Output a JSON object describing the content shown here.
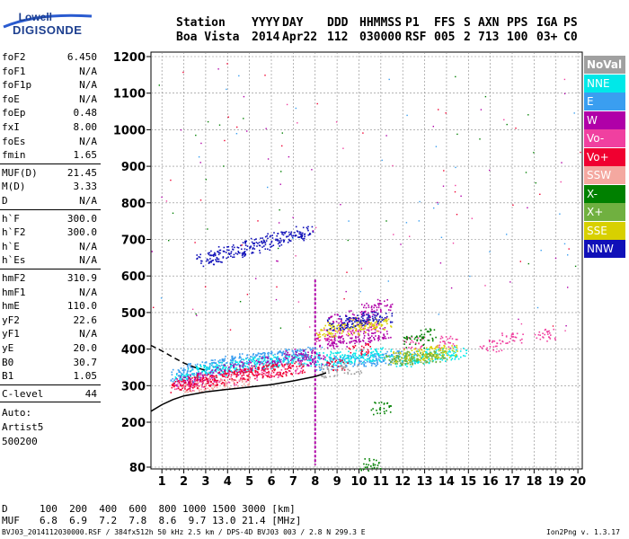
{
  "logo": {
    "line1": "Lowell",
    "line2": "DIGISONDE"
  },
  "header": {
    "labels": [
      "Station",
      "YYYY",
      "DAY",
      "DDD",
      "HHMMSS",
      "P1",
      "FFS",
      "S",
      "AXN",
      "PPS",
      "IGA",
      "PS"
    ],
    "values": [
      "Boa Vista",
      "2014",
      "Apr22",
      "112",
      "030000",
      "RSF",
      "005",
      "2",
      "713",
      "100",
      "03+",
      "C0"
    ]
  },
  "params": {
    "group1": [
      {
        "name": "foF2",
        "value": "6.450"
      },
      {
        "name": "foF1",
        "value": "N/A"
      },
      {
        "name": "foF1p",
        "value": "N/A"
      },
      {
        "name": "foE",
        "value": "N/A"
      },
      {
        "name": "foEp",
        "value": "0.48"
      },
      {
        "name": "fxI",
        "value": "8.00"
      },
      {
        "name": "foEs",
        "value": "N/A"
      },
      {
        "name": "fmin",
        "value": "1.65"
      }
    ],
    "group2": [
      {
        "name": "MUF(D)",
        "value": "21.45"
      },
      {
        "name": "M(D)",
        "value": "3.33"
      },
      {
        "name": "D",
        "value": "N/A"
      }
    ],
    "group3": [
      {
        "name": "h`F",
        "value": "300.0"
      },
      {
        "name": "h`F2",
        "value": "300.0"
      },
      {
        "name": "h`E",
        "value": "N/A"
      },
      {
        "name": "h`Es",
        "value": "N/A"
      }
    ],
    "group4": [
      {
        "name": "hmF2",
        "value": "310.9"
      },
      {
        "name": "hmF1",
        "value": "N/A"
      },
      {
        "name": "hmE",
        "value": "110.0"
      },
      {
        "name": "yF2",
        "value": "22.6"
      },
      {
        "name": "yF1",
        "value": "N/A"
      },
      {
        "name": "yE",
        "value": "20.0"
      },
      {
        "name": "B0",
        "value": "30.7"
      },
      {
        "name": "B1",
        "value": "1.05"
      }
    ],
    "group5": [
      {
        "name": "C-level",
        "value": "44"
      }
    ],
    "auto": [
      "Auto:",
      "Artist5",
      "500200"
    ]
  },
  "legend": [
    {
      "label": "NoVal",
      "color": "#a0a0a0"
    },
    {
      "label": "NNE",
      "color": "#00e8e8"
    },
    {
      "label": "E",
      "color": "#3a9ef0"
    },
    {
      "label": "W",
      "color": "#b000a8"
    },
    {
      "label": "Vo-",
      "color": "#f040a0"
    },
    {
      "label": "Vo+",
      "color": "#f00030"
    },
    {
      "label": "SSW",
      "color": "#f4a8a0"
    },
    {
      "label": "X-",
      "color": "#008000"
    },
    {
      "label": "X+",
      "color": "#70b040"
    },
    {
      "label": "SSE",
      "color": "#d8d000"
    },
    {
      "label": "NNW",
      "color": "#1010b8"
    }
  ],
  "chart_data": {
    "type": "scatter",
    "xlim": [
      0.5,
      20.2
    ],
    "ylim": [
      80,
      1210
    ],
    "xticks": [
      1,
      2,
      3,
      4,
      5,
      6,
      7,
      8,
      9,
      10,
      11,
      12,
      13,
      14,
      15,
      16,
      17,
      18,
      19,
      20
    ],
    "yticks": [
      80,
      200,
      300,
      400,
      500,
      600,
      700,
      800,
      900,
      1000,
      1100,
      1200
    ],
    "grid": true,
    "marker_line_x": 8.0,
    "series": [
      {
        "name": "E",
        "color": "#3a9ef0",
        "points": [
          [
            1.8,
            330
          ],
          [
            2.2,
            340
          ],
          [
            2.6,
            345
          ],
          [
            3.0,
            350
          ],
          [
            3.4,
            355
          ],
          [
            3.8,
            360
          ],
          [
            4.2,
            365
          ],
          [
            4.6,
            370
          ],
          [
            5.0,
            372
          ],
          [
            5.4,
            375
          ],
          [
            5.8,
            378
          ],
          [
            6.2,
            380
          ],
          [
            6.6,
            382
          ],
          [
            7.0,
            385
          ],
          [
            7.4,
            388
          ],
          [
            7.8,
            390
          ],
          [
            8.5,
            360
          ],
          [
            9.0,
            365
          ],
          [
            9.5,
            368
          ],
          [
            10.0,
            370
          ],
          [
            10.5,
            372
          ],
          [
            11.0,
            375
          ],
          [
            11.5,
            378
          ],
          [
            12.2,
            380
          ]
        ]
      },
      {
        "name": "NNE",
        "color": "#00e8e8",
        "points": [
          [
            2.0,
            320
          ],
          [
            2.5,
            335
          ],
          [
            3.0,
            340
          ],
          [
            3.5,
            345
          ],
          [
            4.0,
            350
          ],
          [
            4.5,
            355
          ],
          [
            5.0,
            360
          ],
          [
            5.5,
            362
          ],
          [
            6.0,
            365
          ],
          [
            6.5,
            368
          ],
          [
            7.0,
            370
          ],
          [
            7.5,
            372
          ],
          [
            8.5,
            375
          ],
          [
            9.0,
            378
          ],
          [
            9.5,
            380
          ],
          [
            10.0,
            382
          ],
          [
            10.5,
            385
          ],
          [
            11.0,
            388
          ],
          [
            12.0,
            370
          ],
          [
            12.5,
            375
          ],
          [
            13.0,
            380
          ],
          [
            13.5,
            385
          ],
          [
            14.0,
            388
          ],
          [
            14.5,
            392
          ]
        ]
      },
      {
        "name": "W",
        "color": "#b000a8",
        "points": [
          [
            2.0,
            310
          ],
          [
            2.5,
            320
          ],
          [
            3.0,
            330
          ],
          [
            4.0,
            345
          ],
          [
            5.0,
            355
          ],
          [
            6.0,
            365
          ],
          [
            7.0,
            380
          ],
          [
            7.5,
            385
          ],
          [
            8.1,
            370
          ],
          [
            8.5,
            420
          ],
          [
            9.0,
            425
          ],
          [
            9.5,
            430
          ],
          [
            10.0,
            435
          ],
          [
            10.5,
            440
          ],
          [
            11.0,
            445
          ],
          [
            9.0,
            480
          ],
          [
            10.0,
            490
          ],
          [
            10.5,
            510
          ],
          [
            11.0,
            520
          ]
        ]
      },
      {
        "name": "Vo-",
        "color": "#f040a0",
        "points": [
          [
            2.0,
            305
          ],
          [
            3.0,
            315
          ],
          [
            4.0,
            320
          ],
          [
            5.0,
            330
          ],
          [
            6.0,
            340
          ],
          [
            7.0,
            350
          ],
          [
            8.5,
            440
          ],
          [
            9.5,
            455
          ],
          [
            10.5,
            460
          ],
          [
            12.5,
            420
          ],
          [
            14.0,
            420
          ],
          [
            16.0,
            410
          ],
          [
            17.0,
            430
          ],
          [
            18.5,
            440
          ]
        ]
      },
      {
        "name": "Vo+",
        "color": "#f00030",
        "points": [
          [
            1.8,
            300
          ],
          [
            2.2,
            305
          ],
          [
            2.6,
            310
          ],
          [
            3.0,
            315
          ],
          [
            3.5,
            320
          ],
          [
            4.0,
            325
          ],
          [
            4.5,
            330
          ],
          [
            5.0,
            335
          ],
          [
            5.5,
            338
          ],
          [
            6.0,
            342
          ],
          [
            6.5,
            345
          ],
          [
            7.0,
            350
          ],
          [
            9.0,
            360
          ],
          [
            10.0,
            400
          ]
        ]
      },
      {
        "name": "SSE",
        "color": "#d8d000",
        "points": [
          [
            8.5,
            450
          ],
          [
            9.0,
            460
          ],
          [
            9.5,
            455
          ],
          [
            10.0,
            470
          ],
          [
            10.5,
            465
          ],
          [
            11.0,
            470
          ],
          [
            12.0,
            380
          ],
          [
            12.5,
            385
          ],
          [
            13.0,
            390
          ],
          [
            13.5,
            392
          ],
          [
            14.0,
            395
          ]
        ]
      },
      {
        "name": "X+",
        "color": "#70b040",
        "points": [
          [
            11.5,
            370
          ],
          [
            12.0,
            375
          ],
          [
            12.5,
            378
          ],
          [
            13.0,
            380
          ],
          [
            13.5,
            382
          ]
        ]
      },
      {
        "name": "X-",
        "color": "#008000",
        "points": [
          [
            12.5,
            420
          ],
          [
            13.0,
            440
          ],
          [
            11.0,
            240
          ],
          [
            10.5,
            88
          ]
        ]
      },
      {
        "name": "NNW",
        "color": "#1010b8",
        "points": [
          [
            3.0,
            645
          ],
          [
            3.5,
            655
          ],
          [
            4.0,
            665
          ],
          [
            4.5,
            670
          ],
          [
            5.0,
            680
          ],
          [
            5.5,
            690
          ],
          [
            6.0,
            700
          ],
          [
            6.5,
            710
          ],
          [
            7.0,
            715
          ],
          [
            7.4,
            720
          ],
          [
            9.0,
            470
          ],
          [
            9.5,
            475
          ],
          [
            10.0,
            480
          ],
          [
            10.5,
            485
          ],
          [
            11.0,
            490
          ]
        ]
      },
      {
        "name": "SSW",
        "color": "#f4a8a0",
        "points": [
          [
            2.5,
            300
          ],
          [
            3.5,
            305
          ],
          [
            4.5,
            310
          ]
        ]
      },
      {
        "name": "NoVal",
        "color": "#a0a0a0",
        "points": [
          [
            8.6,
            340
          ],
          [
            9.6,
            350
          ]
        ]
      }
    ],
    "model_curves": [
      {
        "name": "solid",
        "style": "solid",
        "points": [
          [
            0.5,
            230
          ],
          [
            1.0,
            248
          ],
          [
            1.5,
            262
          ],
          [
            2.0,
            272
          ],
          [
            3.0,
            283
          ],
          [
            4.0,
            290
          ],
          [
            5.0,
            296
          ],
          [
            6.0,
            303
          ],
          [
            7.0,
            313
          ],
          [
            8.0,
            325
          ],
          [
            8.5,
            335
          ]
        ]
      },
      {
        "name": "dashed",
        "style": "dashed",
        "points": [
          [
            0.5,
            410
          ],
          [
            1.0,
            395
          ],
          [
            1.5,
            378
          ],
          [
            2.0,
            362
          ],
          [
            2.5,
            350
          ],
          [
            3.0,
            342
          ]
        ]
      }
    ]
  },
  "footer": {
    "d_label": "D",
    "d_values": "100  200  400  600  800 1000 1500 3000 [km]",
    "muf_label": "MUF",
    "muf_values": "6.8  6.9  7.2  7.8  8.6  9.7 13.0 21.4 [MHz]",
    "file_info": "BVJ03_2014112030000.RSF / 384fx512h 50 kHz 2.5 km / DPS-4D BVJ03 003 / 2.8 N 299.3 E",
    "version": "Ion2Png v. 1.3.17"
  }
}
